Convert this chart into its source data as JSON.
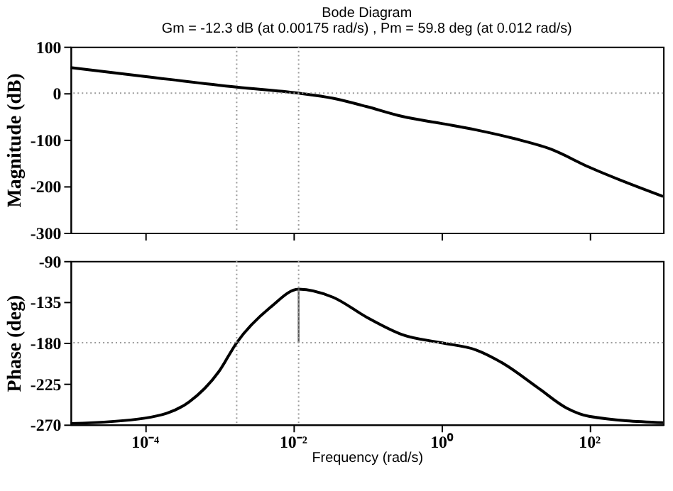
{
  "chart_data": [
    {
      "type": "line",
      "title": "Bode Diagram",
      "subtitle": "Gm = -12.3 dB (at 0.00175 rad/s) ,  Pm = 59.8 deg (at 0.012 rad/s)",
      "ylabel": "Magnitude (dB)",
      "log": "x",
      "xlim": [
        1e-05,
        1000
      ],
      "xticks": [
        {
          "value": 0.0001,
          "label": null
        },
        {
          "value": 0.01,
          "label": null
        },
        {
          "value": 1,
          "label": null
        },
        {
          "value": 100,
          "label": null
        }
      ],
      "ylim": [
        -300,
        100
      ],
      "yticks": [
        -300,
        -200,
        -100,
        0,
        100
      ],
      "tick_labels": "y",
      "line_style": "solid",
      "series": [
        {
          "color": "#000000",
          "x": [
            1e-05,
            0.0001,
            0.00175,
            0.012,
            0.035,
            0.1,
            0.3,
            1,
            3,
            10,
            30,
            100,
            1000
          ],
          "values": [
            55,
            36,
            13,
            0,
            -11,
            -29,
            -50,
            -65,
            -79,
            -98,
            -120,
            -159,
            -222
          ]
        }
      ],
      "ref_lines": [
        {
          "axis": "y",
          "value": 0,
          "color": "#999999",
          "line_style": "dotted"
        },
        {
          "axis": "x",
          "value": 0.00175,
          "color": "#999999",
          "line_style": "dotted"
        },
        {
          "axis": "x",
          "value": 0.012,
          "color": "#999999",
          "line_style": "dotted"
        }
      ]
    },
    {
      "type": "line",
      "xlabel": "Frequency  (rad/s)",
      "ylabel": "Phase (deg)",
      "log": "x",
      "xlim": [
        1e-05,
        1000
      ],
      "xticks": [
        {
          "value": 0.0001,
          "label": "10⁻⁴"
        },
        {
          "value": 0.01,
          "label": "10⁻²"
        },
        {
          "value": 1,
          "label": "10⁰"
        },
        {
          "value": 100,
          "label": "10²"
        }
      ],
      "ylim": [
        -270,
        -90
      ],
      "yticks": [
        -270,
        -225,
        -180,
        -135,
        -90
      ],
      "line_style": "solid",
      "series": [
        {
          "color": "#000000",
          "x": [
            1e-05,
            0.0001,
            0.0004,
            0.001,
            0.00175,
            0.005,
            0.012,
            0.035,
            0.1,
            0.3,
            1,
            3,
            7,
            20,
            50,
            100,
            1000
          ],
          "values": [
            -269,
            -263,
            -245,
            -212,
            -180,
            -141,
            -121,
            -130,
            -152,
            -171,
            -180,
            -188,
            -203,
            -229,
            -252,
            -261,
            -268
          ]
        },
        {
          "color": "#555555",
          "x": [
            0.012,
            0.012
          ],
          "values": [
            -180,
            -120
          ]
        }
      ],
      "ref_lines": [
        {
          "axis": "y",
          "value": -180,
          "color": "#999999",
          "line_style": "dotted"
        },
        {
          "axis": "x",
          "value": 0.00175,
          "color": "#999999",
          "line_style": "dotted"
        },
        {
          "axis": "x",
          "value": 0.012,
          "color": "#999999",
          "line_style": "dotted"
        }
      ]
    }
  ]
}
